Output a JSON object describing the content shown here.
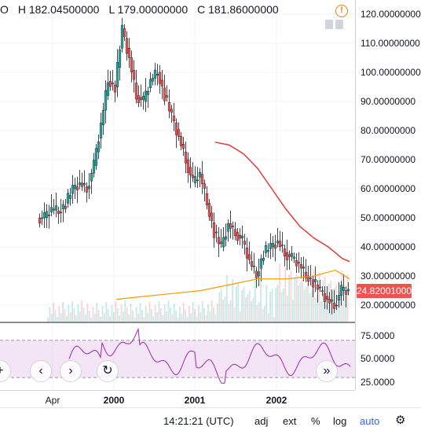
{
  "legend": {
    "open_partial": "O",
    "high": "H 182.04500000",
    "low": "L 179.00000000",
    "close": "C 181.86000000"
  },
  "price_axis": {
    "ticks": [
      "120.00000000",
      "110.00000000",
      "100.00000000",
      "90.00000000",
      "80.00000000",
      "70.00000000",
      "60.00000000",
      "50.00000000",
      "40.00000000",
      "30.00000000",
      "20.00000000"
    ],
    "last_price": "24.82001000",
    "last_price_color": "#ef5350"
  },
  "rsi_axis": {
    "ticks": [
      "75.0000",
      "50.0000",
      "25.0000"
    ]
  },
  "time_axis": {
    "labels": [
      "Apr",
      "2000",
      "2001",
      "2002"
    ]
  },
  "bottom_bar": {
    "time": "14:21:21 (UTC)",
    "adj": "adj",
    "ext": "ext",
    "percent": "%",
    "log": "log",
    "auto": "auto"
  },
  "colors": {
    "up": "#26a69a",
    "down": "#ef5350",
    "ma_red": "#e53935",
    "ma_orange": "#ff9800",
    "rsi_line": "#9c27b0",
    "rsi_band": "#e1bee7"
  },
  "icons": {
    "info": "info-icon",
    "left": "chevron-left-icon",
    "right": "chevron-right-icon",
    "reset": "reset-icon",
    "scroll": "double-chevron-right-icon",
    "add": "plus-icon",
    "settings": "gear-icon"
  },
  "chart_data": {
    "type": "candlestick",
    "x": [
      "1999-03",
      "1999-04",
      "1999-05",
      "1999-06",
      "1999-07",
      "1999-08",
      "1999-09",
      "1999-10",
      "1999-11",
      "1999-12",
      "2000-01",
      "2000-02",
      "2000-03",
      "2000-04",
      "2000-05",
      "2000-06",
      "2000-07",
      "2000-08",
      "2000-09",
      "2000-10",
      "2000-11",
      "2000-12",
      "2001-01",
      "2001-02",
      "2001-03",
      "2001-04",
      "2001-05",
      "2001-06",
      "2001-07",
      "2001-08",
      "2001-09",
      "2001-10",
      "2001-11",
      "2001-12",
      "2002-01",
      "2002-02",
      "2002-03",
      "2002-04",
      "2002-05",
      "2002-06",
      "2002-07",
      "2002-08",
      "2002-09",
      "2002-10"
    ],
    "close": [
      50,
      53,
      52,
      55,
      60,
      62,
      60,
      68,
      82,
      97,
      95,
      115,
      105,
      92,
      90,
      97,
      100,
      92,
      85,
      78,
      70,
      62,
      65,
      55,
      45,
      40,
      48,
      45,
      42,
      35,
      30,
      38,
      40,
      42,
      38,
      36,
      34,
      30,
      28,
      25,
      22,
      20,
      25,
      24.82
    ],
    "ylim": [
      14,
      124
    ],
    "rsi": {
      "upper_band": 70,
      "lower_band": 30,
      "ticks": [
        75,
        50,
        25
      ]
    },
    "series": [
      {
        "name": "",
        "type": "sma_long",
        "points": [
          [
            24,
            76
          ],
          [
            26,
            75
          ],
          [
            28,
            72
          ],
          [
            30,
            67
          ],
          [
            32,
            60
          ],
          [
            34,
            53
          ],
          [
            36,
            47
          ],
          [
            38,
            43
          ],
          [
            40,
            40
          ],
          [
            42,
            36
          ],
          [
            43,
            35
          ]
        ]
      },
      {
        "name": "",
        "type": "sma_short",
        "points": [
          [
            10,
            22
          ],
          [
            14,
            23
          ],
          [
            18,
            24
          ],
          [
            22,
            25
          ],
          [
            26,
            27
          ],
          [
            30,
            29
          ],
          [
            34,
            29
          ],
          [
            38,
            30
          ],
          [
            41,
            32
          ],
          [
            43,
            29
          ]
        ]
      }
    ]
  }
}
